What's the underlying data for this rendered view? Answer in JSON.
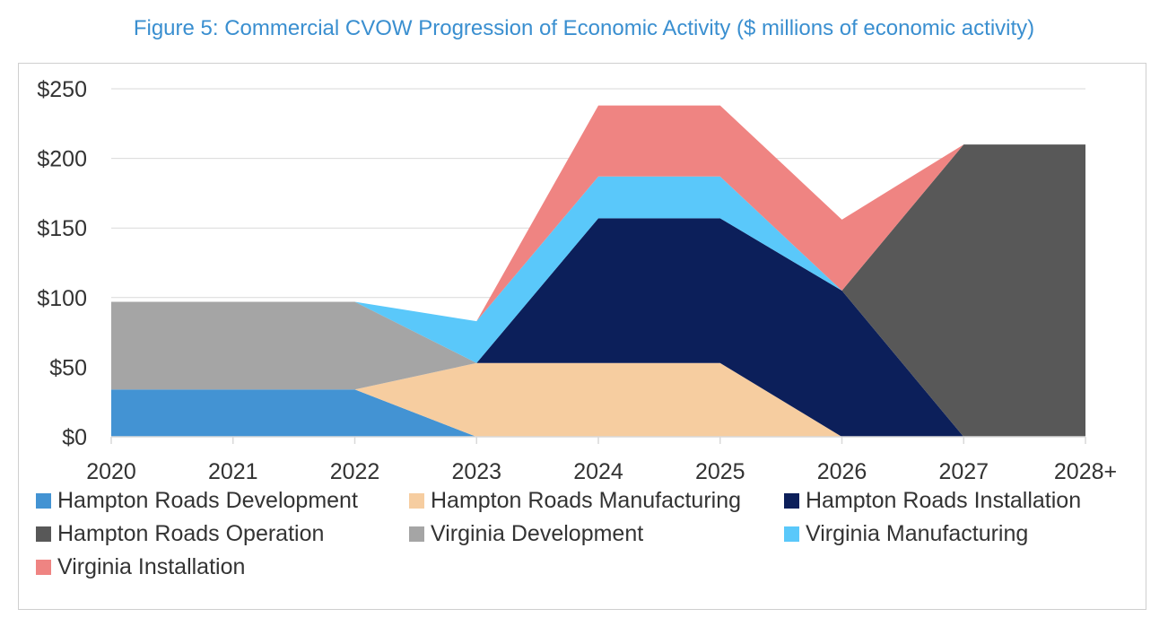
{
  "title": "Figure 5:  Commercial CVOW Progression of Economic Activity ($ millions of economic activity)",
  "chart_data": {
    "type": "area",
    "stacked": true,
    "categories": [
      "2020",
      "2021",
      "2022",
      "2023",
      "2024",
      "2025",
      "2026",
      "2027",
      "2028+"
    ],
    "ylim": [
      0,
      250
    ],
    "yticks": [
      0,
      50,
      100,
      150,
      200,
      250
    ],
    "ytick_labels": [
      "$0",
      "$50",
      "$100",
      "$150",
      "$200",
      "$250"
    ],
    "grid": true,
    "legend_position": "bottom",
    "series": [
      {
        "name": "Hampton Roads Development",
        "color": "#4393d3",
        "values": [
          34,
          34,
          34,
          0,
          0,
          0,
          0,
          0,
          0
        ]
      },
      {
        "name": "Hampton Roads Manufacturing",
        "color": "#f6cda0",
        "values": [
          0,
          0,
          0,
          53,
          53,
          53,
          0,
          0,
          0
        ]
      },
      {
        "name": "Hampton Roads Installation",
        "color": "#0c1f5a",
        "values": [
          0,
          0,
          0,
          0,
          104,
          104,
          105,
          0,
          0
        ]
      },
      {
        "name": "Hampton Roads Operation",
        "color": "#585858",
        "values": [
          0,
          0,
          0,
          0,
          0,
          0,
          0,
          210,
          210
        ]
      },
      {
        "name": "Virginia Development",
        "color": "#a5a5a5",
        "values": [
          63,
          63,
          63,
          0,
          0,
          0,
          0,
          0,
          0
        ]
      },
      {
        "name": "Virginia Manufacturing",
        "color": "#5ac8fa",
        "values": [
          0,
          0,
          0,
          30,
          30,
          30,
          0,
          0,
          0
        ]
      },
      {
        "name": "Virginia Installation",
        "color": "#ef8482",
        "values": [
          0,
          0,
          0,
          0,
          51,
          51,
          51,
          0,
          0
        ]
      }
    ]
  }
}
